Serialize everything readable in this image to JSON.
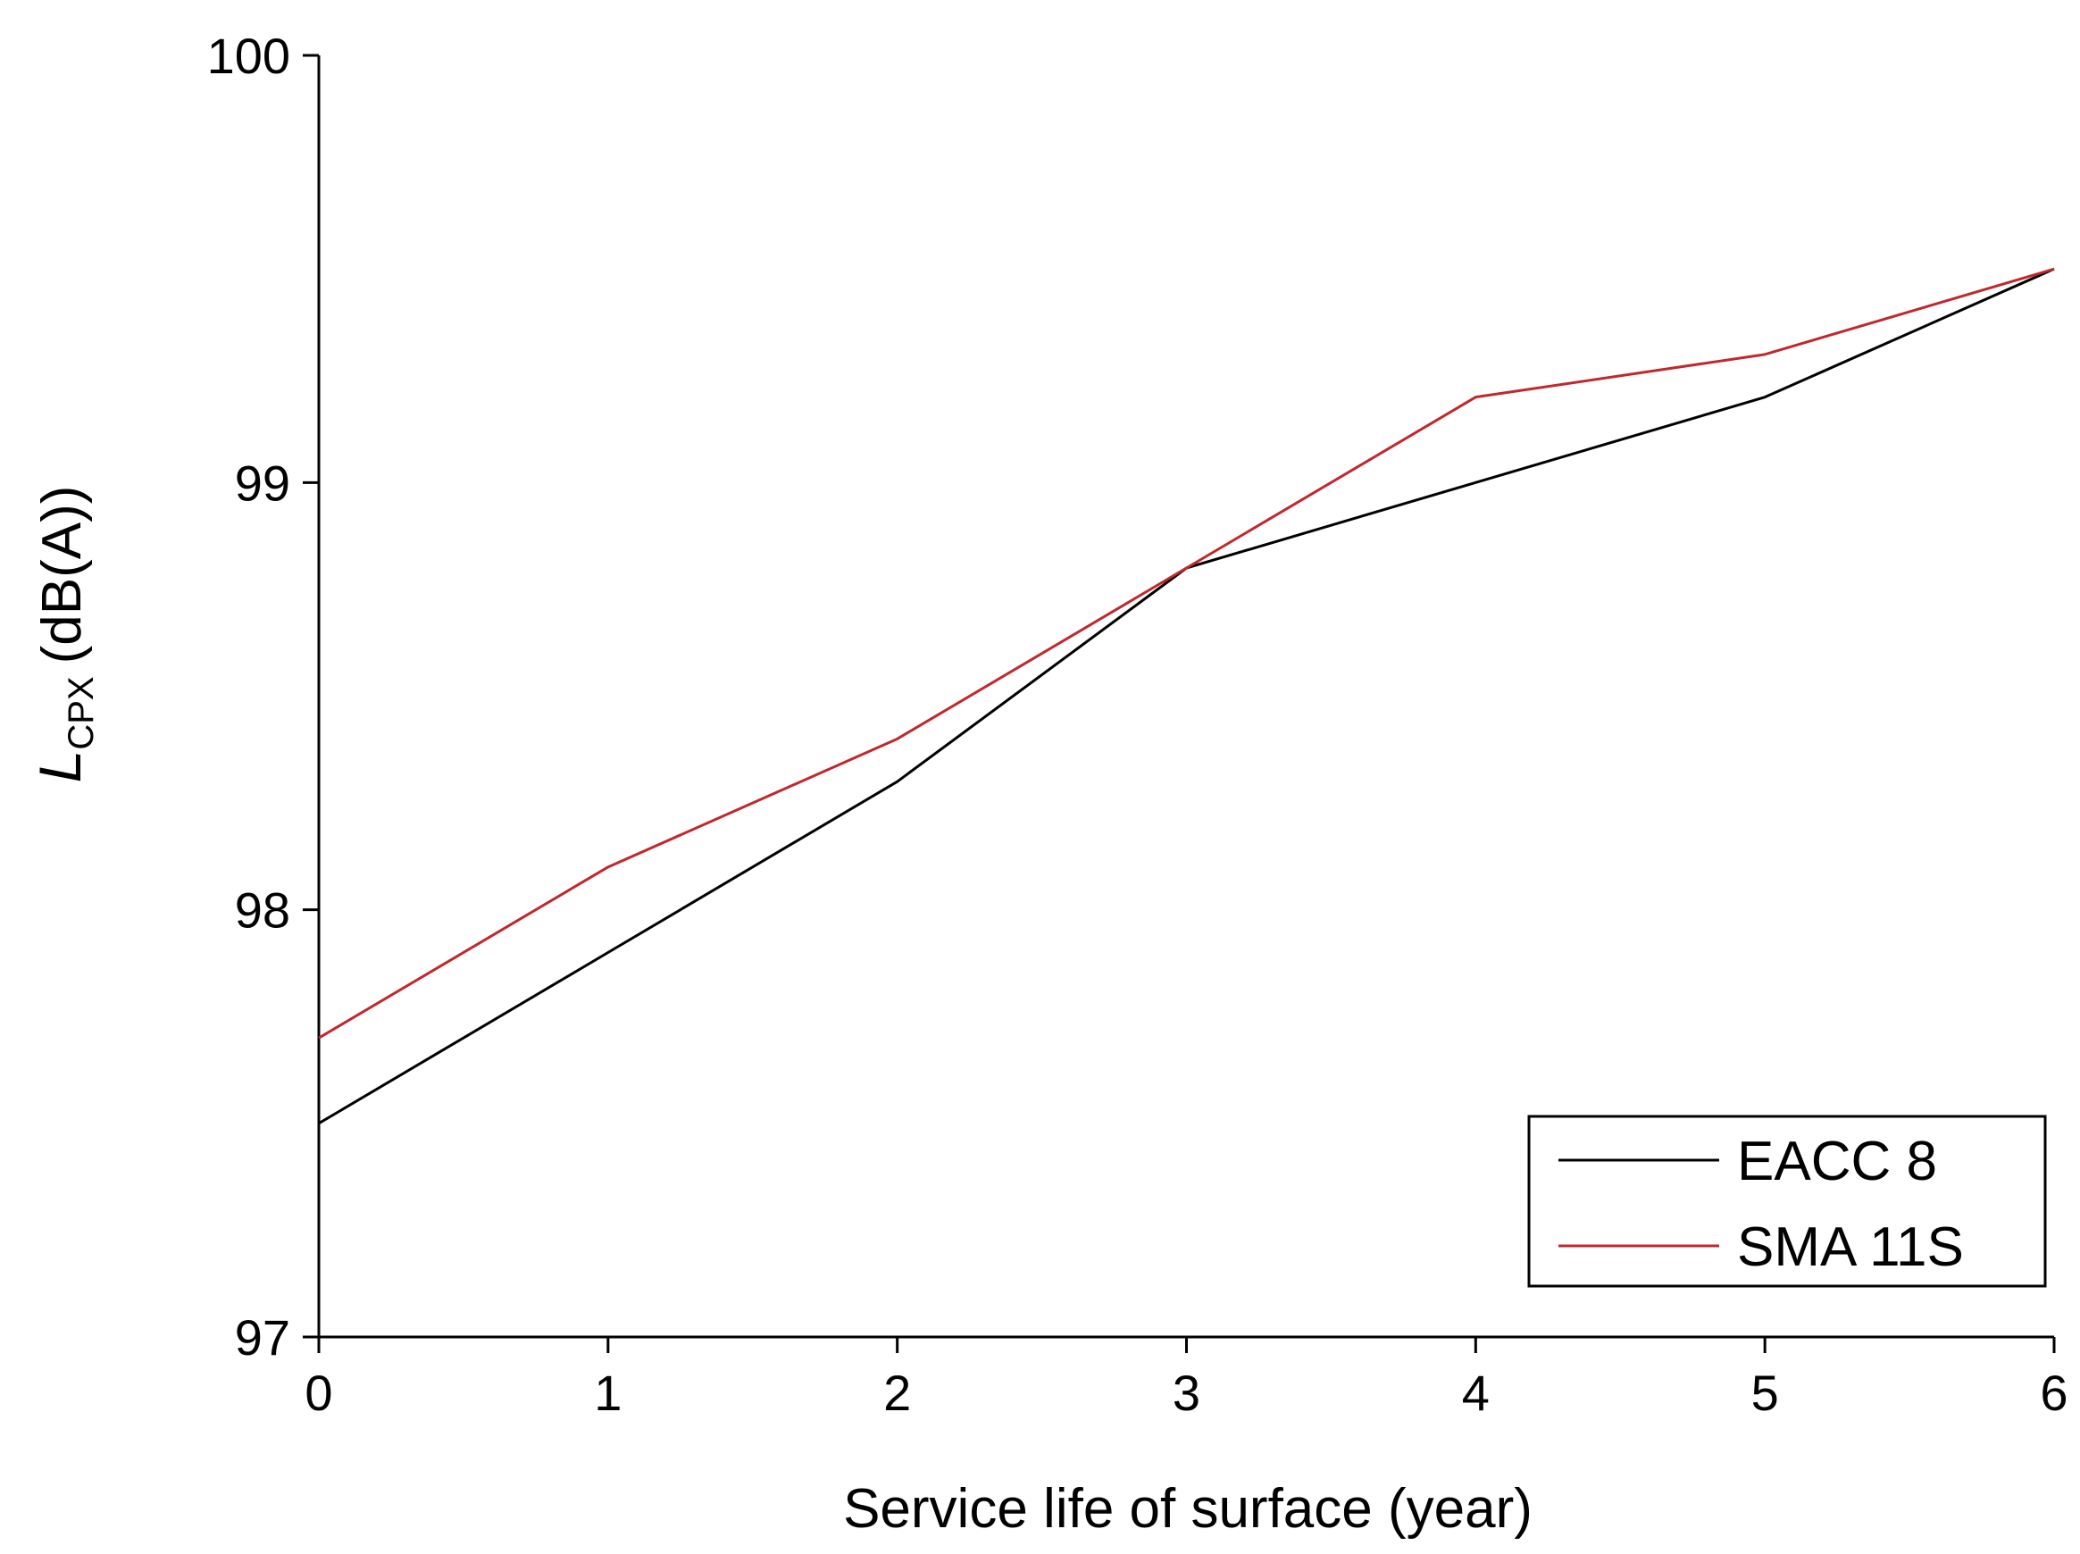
{
  "chart_data": {
    "type": "line",
    "title": "",
    "xlabel": "Service life of surface (year)",
    "ylabel": {
      "symbol": "L",
      "subscript": "CPX",
      "unit": "(dB(A))"
    },
    "x": [
      0,
      1,
      2,
      3,
      4,
      5,
      6
    ],
    "xlim": [
      0,
      6
    ],
    "ylim": [
      97,
      100
    ],
    "xticks": [
      "0",
      "1",
      "2",
      "3",
      "4",
      "5",
      "6"
    ],
    "yticks": [
      "97",
      "98",
      "99",
      "100"
    ],
    "grid": false,
    "legend_position": "bottom-right",
    "series": [
      {
        "name": "EACC 8",
        "color": "#000000",
        "values": [
          97.5,
          97.9,
          98.3,
          98.8,
          99.0,
          99.2,
          99.5
        ]
      },
      {
        "name": "SMA 11S",
        "color": "#c0282d",
        "values": [
          97.7,
          98.1,
          98.4,
          98.8,
          99.2,
          99.3,
          99.5
        ]
      }
    ]
  }
}
